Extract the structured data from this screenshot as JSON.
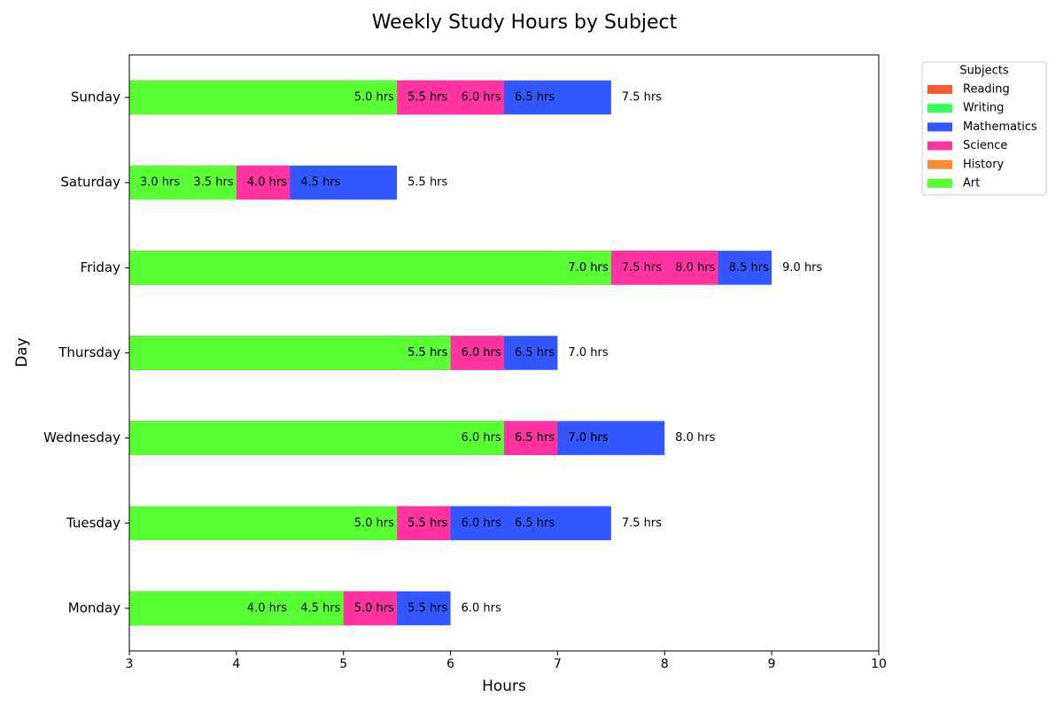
{
  "chart_data": {
    "type": "bar",
    "orientation": "horizontal",
    "stacking": "overlay",
    "title": "Weekly Study Hours by Subject",
    "xlabel": "Hours",
    "ylabel": "Day",
    "categories": [
      "Monday",
      "Tuesday",
      "Wednesday",
      "Thursday",
      "Friday",
      "Saturday",
      "Sunday"
    ],
    "series": [
      {
        "name": "Reading",
        "color": "#FF5733",
        "values": [
          4.0,
          5.0,
          6.0,
          5.5,
          7.0,
          3.0,
          5.0
        ],
        "value_labels": [
          "4.0 hrs",
          "5.0 hrs",
          "6.0 hrs",
          "5.5 hrs",
          "7.0 hrs",
          "3.0 hrs",
          "5.0 hrs"
        ]
      },
      {
        "name": "Writing",
        "color": "#33FF57",
        "values": [
          4.5,
          6.5,
          7.0,
          5.5,
          8.0,
          3.5,
          6.0
        ],
        "value_labels": [
          "4.5 hrs",
          "6.5 hrs",
          "7.0 hrs",
          "5.5 hrs",
          "8.0 hrs",
          "3.5 hrs",
          "6.0 hrs"
        ]
      },
      {
        "name": "Mathematics",
        "color": "#3357FF",
        "values": [
          6.0,
          7.5,
          8.0,
          7.0,
          9.0,
          5.5,
          7.5
        ],
        "value_labels": [
          "6.0 hrs",
          "7.5 hrs",
          "8.0 hrs",
          "7.0 hrs",
          "9.0 hrs",
          "5.5 hrs",
          "7.5 hrs"
        ]
      },
      {
        "name": "Science",
        "color": "#FF33A1",
        "values": [
          5.5,
          6.0,
          7.0,
          6.5,
          8.5,
          4.5,
          6.5
        ],
        "value_labels": [
          "5.5 hrs",
          "6.0 hrs",
          "7.0 hrs",
          "6.5 hrs",
          "8.5 hrs",
          "4.5 hrs",
          "6.5 hrs"
        ]
      },
      {
        "name": "History",
        "color": "#FF8C33",
        "values": [
          5.0,
          5.5,
          6.5,
          6.0,
          7.0,
          4.0,
          5.5
        ],
        "value_labels": [
          "5.0 hrs",
          "5.5 hrs",
          "6.5 hrs",
          "6.0 hrs",
          "7.0 hrs",
          "4.0 hrs",
          "5.5 hrs"
        ]
      },
      {
        "name": "Art",
        "color": "#57FF33",
        "values": [
          5.0,
          5.5,
          6.5,
          6.0,
          7.5,
          4.0,
          5.5
        ],
        "value_labels": [
          "5.0 hrs",
          "5.5 hrs",
          "6.5 hrs",
          "6.0 hrs",
          "7.5 hrs",
          "4.0 hrs",
          "5.5 hrs"
        ]
      }
    ],
    "xlim": [
      3,
      10
    ],
    "xticks": [
      3,
      4,
      5,
      6,
      7,
      8,
      9,
      10
    ],
    "legend_title": "Subjects",
    "legend": "outside-upper-right"
  }
}
